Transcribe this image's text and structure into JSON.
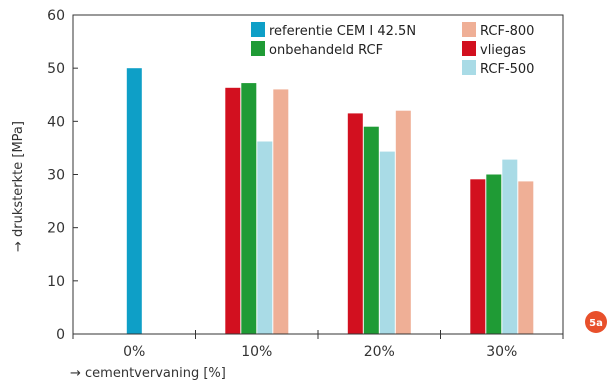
{
  "chart_data": {
    "type": "bar",
    "categories": [
      "0%",
      "10%",
      "20%",
      "30%"
    ],
    "series": [
      {
        "name": "referentie CEM I 42.5N",
        "color": "#0e9fc7",
        "values": [
          50,
          null,
          null,
          null
        ]
      },
      {
        "name": "vliegas",
        "color": "#d2101f",
        "values": [
          null,
          46.3,
          41.5,
          29.1
        ]
      },
      {
        "name": "onbehandeld RCF",
        "color": "#1f9b35",
        "values": [
          null,
          47.2,
          39,
          30
        ]
      },
      {
        "name": "RCF-500",
        "color": "#a9dbe6",
        "values": [
          null,
          36.2,
          34.3,
          32.8
        ]
      },
      {
        "name": "RCF-800",
        "color": "#efaf96",
        "values": [
          null,
          46,
          42,
          28.7
        ]
      }
    ],
    "xlabel": "→ cementvervaning [%]",
    "ylabel": "→ druksterkte [MPa]",
    "ylim": [
      0,
      60
    ],
    "yticks": [
      0,
      10,
      20,
      30,
      40,
      50,
      60
    ],
    "grid": false,
    "legend_position": "top-right"
  },
  "badge": {
    "label": "5a",
    "color": "#e8502b"
  }
}
